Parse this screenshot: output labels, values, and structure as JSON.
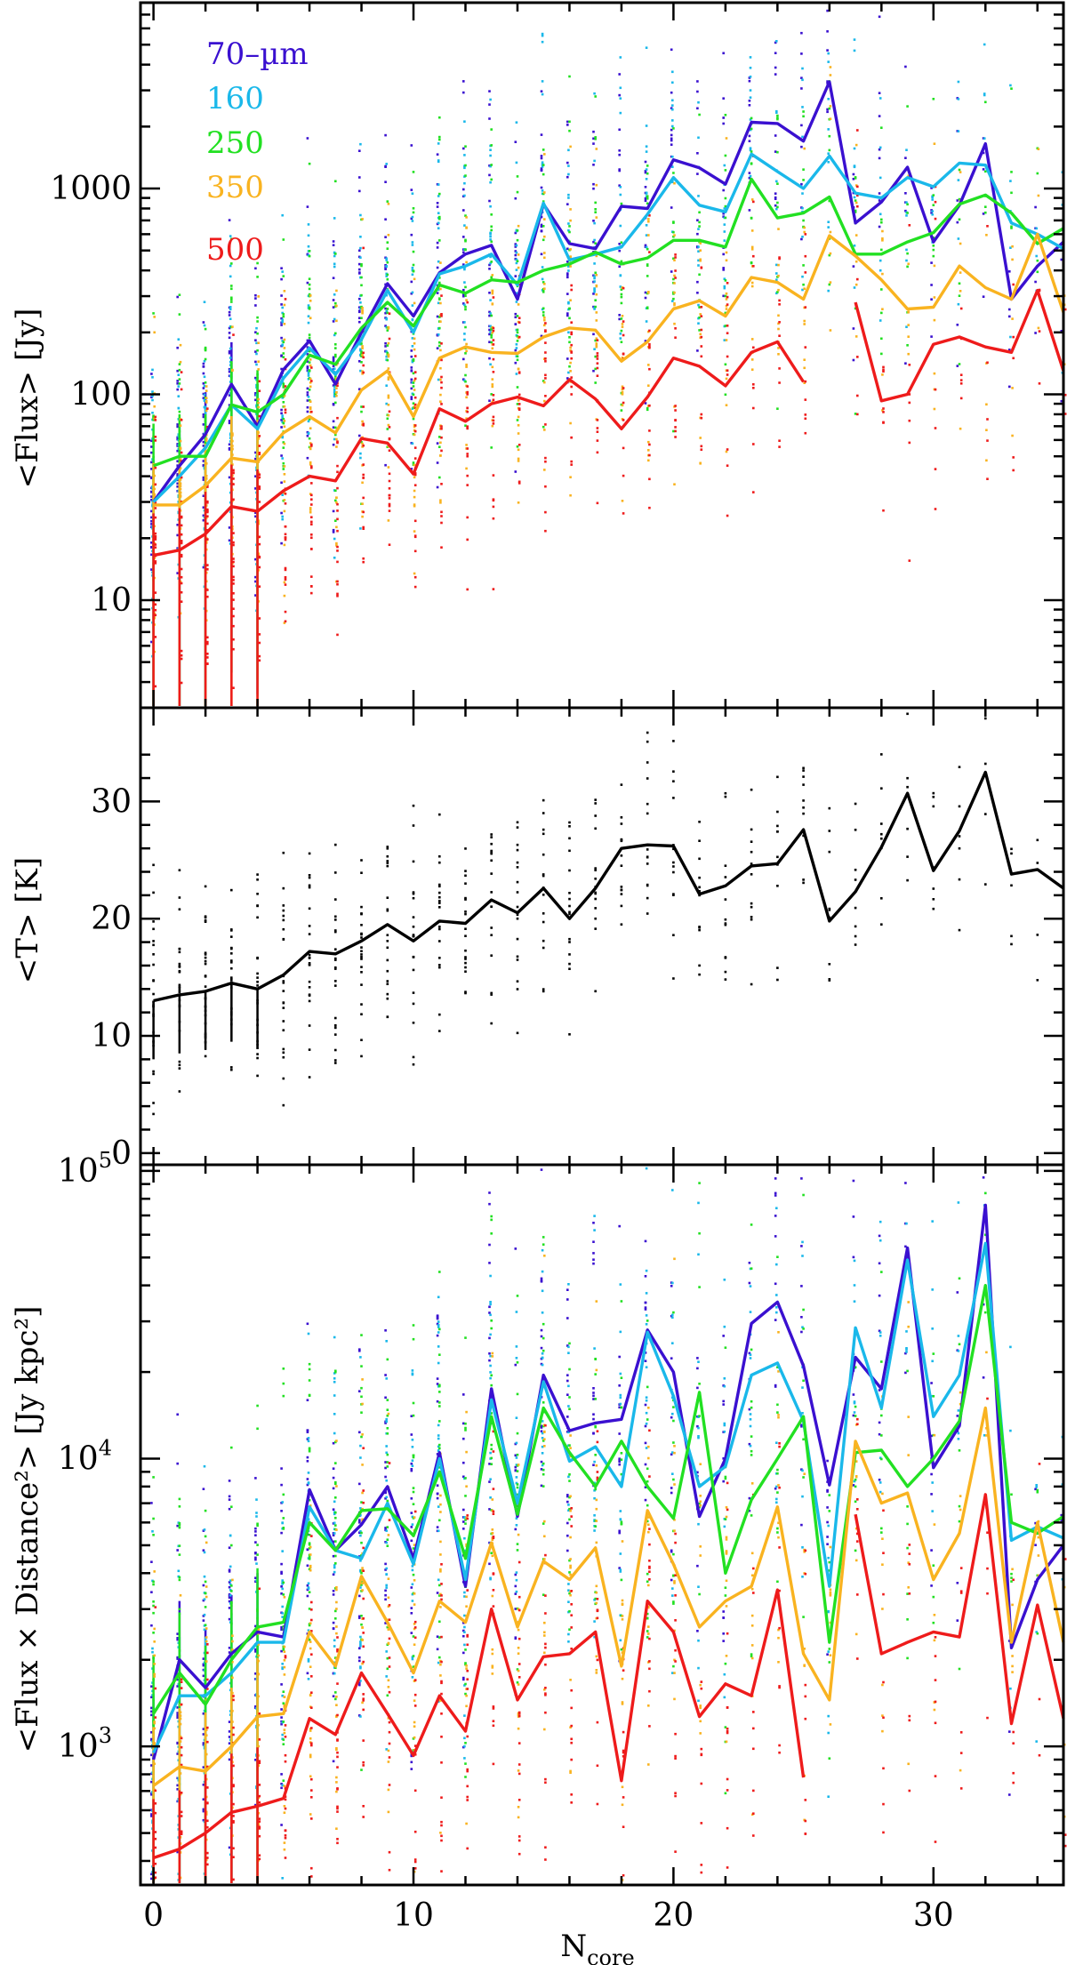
{
  "chart_data": [
    {
      "type": "line",
      "panel": "top",
      "title": "",
      "xlabel": "",
      "ylabel": "<Flux> [Jy]",
      "yscale": "log",
      "xlim": [
        -0.5,
        35
      ],
      "ylim": [
        3,
        8000
      ],
      "xticks": [
        0,
        10,
        20,
        30
      ],
      "yticks": [
        {
          "v": 10,
          "label": "10"
        },
        {
          "v": 100,
          "label": "100"
        },
        {
          "v": 1000,
          "label": "1000"
        }
      ],
      "legend": {
        "position": "top-left",
        "entries": [
          "70–µm",
          "160",
          "250",
          "350",
          "500"
        ]
      },
      "series": [
        {
          "name": "70–µm",
          "color": "#3a10d0",
          "x": [
            0,
            1,
            2,
            3,
            4,
            5,
            6,
            7,
            8,
            9,
            10,
            11,
            12,
            13,
            14,
            15,
            16,
            17,
            18,
            19,
            20,
            21,
            22,
            23,
            24,
            25,
            26,
            27,
            28,
            29,
            30,
            31,
            32,
            33,
            34,
            35
          ],
          "values": [
            30,
            45,
            64,
            112,
            70,
            132,
            182,
            112,
            200,
            345,
            240,
            390,
            480,
            530,
            290,
            840,
            540,
            510,
            820,
            800,
            1380,
            1260,
            1050,
            2100,
            2070,
            1700,
            3300,
            680,
            860,
            1270,
            550,
            830,
            1650,
            290,
            420,
            550
          ]
        },
        {
          "name": "160",
          "color": "#1ab8ea",
          "x": [
            0,
            1,
            2,
            3,
            4,
            5,
            6,
            7,
            8,
            9,
            10,
            11,
            12,
            13,
            14,
            15,
            16,
            17,
            18,
            19,
            20,
            21,
            22,
            23,
            24,
            25,
            26,
            27,
            28,
            29,
            30,
            31,
            32,
            33,
            34,
            35
          ],
          "values": [
            30,
            40,
            55,
            89,
            68,
            120,
            168,
            125,
            185,
            320,
            200,
            385,
            420,
            480,
            340,
            850,
            450,
            480,
            520,
            750,
            1130,
            830,
            770,
            1470,
            1210,
            1000,
            1440,
            950,
            900,
            1130,
            1020,
            1330,
            1300,
            680,
            600,
            510
          ]
        },
        {
          "name": "250",
          "color": "#22e022",
          "x": [
            0,
            1,
            2,
            3,
            4,
            5,
            6,
            7,
            8,
            9,
            10,
            11,
            12,
            13,
            14,
            15,
            16,
            17,
            18,
            19,
            20,
            21,
            22,
            23,
            24,
            25,
            26,
            27,
            28,
            29,
            30,
            31,
            32,
            33,
            34,
            35
          ],
          "values": [
            45,
            50,
            50,
            89,
            82,
            100,
            155,
            140,
            210,
            280,
            215,
            340,
            310,
            360,
            350,
            400,
            430,
            490,
            430,
            460,
            560,
            560,
            520,
            1110,
            720,
            760,
            910,
            480,
            480,
            550,
            610,
            840,
            930,
            760,
            540,
            640
          ]
        },
        {
          "name": "350",
          "color": "#f9b320",
          "x": [
            0,
            1,
            2,
            3,
            4,
            5,
            6,
            7,
            8,
            9,
            10,
            11,
            12,
            13,
            14,
            15,
            16,
            17,
            18,
            19,
            20,
            21,
            22,
            23,
            24,
            25,
            26,
            27,
            28,
            29,
            30,
            31,
            32,
            33,
            34,
            35
          ],
          "values": [
            29,
            29,
            36,
            49,
            47,
            65,
            78,
            65,
            105,
            130,
            78,
            150,
            170,
            160,
            158,
            190,
            210,
            205,
            145,
            180,
            260,
            285,
            240,
            370,
            350,
            290,
            590,
            470,
            360,
            260,
            265,
            420,
            330,
            290,
            600,
            250
          ]
        },
        {
          "name": "500",
          "color": "#ee1b1b",
          "x": [
            0,
            1,
            2,
            3,
            4,
            5,
            6,
            7,
            8,
            9,
            10,
            11,
            12,
            13,
            14,
            15,
            16,
            17,
            18,
            19,
            20,
            21,
            22,
            23,
            24,
            25,
            26,
            27,
            28,
            29,
            30,
            31,
            32,
            33,
            34,
            35
          ],
          "values": [
            16.5,
            17.5,
            21,
            28.5,
            27,
            34,
            40,
            38,
            61,
            58,
            41,
            85,
            74,
            90,
            97,
            88,
            118,
            95,
            68,
            97,
            150,
            137,
            110,
            160,
            180,
            115,
            null,
            280,
            93,
            100,
            175,
            190,
            170,
            160,
            320,
            130
          ]
        }
      ]
    },
    {
      "type": "line",
      "panel": "middle",
      "title": "",
      "xlabel": "",
      "ylabel": "<T> [K]",
      "yscale": "linear",
      "xlim": [
        -0.5,
        35
      ],
      "ylim": [
        -1,
        38
      ],
      "xticks": [
        0,
        10,
        20,
        30
      ],
      "yticks": [
        {
          "v": 0,
          "label": "0"
        },
        {
          "v": 10,
          "label": "10"
        },
        {
          "v": 20,
          "label": "20"
        },
        {
          "v": 30,
          "label": "30"
        }
      ],
      "series": [
        {
          "name": "<T>",
          "color": "#000000",
          "x": [
            0,
            1,
            2,
            3,
            4,
            5,
            6,
            7,
            8,
            9,
            10,
            11,
            12,
            13,
            14,
            15,
            16,
            17,
            18,
            19,
            20,
            21,
            22,
            23,
            24,
            25,
            26,
            27,
            28,
            29,
            30,
            31,
            32,
            33,
            34,
            35
          ],
          "values": [
            13,
            13.5,
            13.8,
            14.5,
            14,
            15.2,
            17.2,
            17,
            18.1,
            19.5,
            18.1,
            19.8,
            19.6,
            21.6,
            20.5,
            22.6,
            20,
            22.6,
            26,
            26.3,
            26.2,
            22.1,
            22.8,
            24.5,
            24.7,
            27.6,
            19.8,
            22.3,
            26.1,
            30.7,
            24.1,
            27.5,
            32.5,
            23.8,
            24.2,
            22.6
          ]
        }
      ]
    },
    {
      "type": "line",
      "panel": "bottom",
      "title": "",
      "xlabel": "N_core",
      "ylabel": "<Flux × Distance²> [Jy kpc²]",
      "yscale": "log",
      "xlim": [
        -0.5,
        35
      ],
      "ylim": [
        330,
        105000
      ],
      "xticks": [
        0,
        10,
        20,
        30
      ],
      "yticks": [
        {
          "v": 1000,
          "label": "10",
          "exp": "3"
        },
        {
          "v": 10000,
          "label": "10",
          "exp": "4"
        },
        {
          "v": 100000,
          "label": "10",
          "exp": "5"
        }
      ],
      "series": [
        {
          "name": "70–µm",
          "color": "#3a10d0",
          "x": [
            0,
            1,
            2,
            3,
            4,
            5,
            6,
            7,
            8,
            9,
            10,
            11,
            12,
            13,
            14,
            15,
            16,
            17,
            18,
            19,
            20,
            21,
            22,
            23,
            24,
            25,
            26,
            27,
            28,
            29,
            30,
            31,
            32,
            33,
            34,
            35
          ],
          "values": [
            900,
            2000,
            1600,
            2100,
            2500,
            2400,
            7800,
            4800,
            5900,
            8000,
            4500,
            10500,
            3600,
            17500,
            6300,
            19500,
            12500,
            13300,
            13700,
            28000,
            20000,
            6300,
            10000,
            29500,
            35000,
            21000,
            8100,
            22500,
            17500,
            54000,
            9300,
            13000,
            76000,
            2200,
            3800,
            5000
          ]
        },
        {
          "name": "160",
          "color": "#1ab8ea",
          "x": [
            0,
            1,
            2,
            3,
            4,
            5,
            6,
            7,
            8,
            9,
            10,
            11,
            12,
            13,
            14,
            15,
            16,
            17,
            18,
            19,
            20,
            21,
            22,
            23,
            24,
            25,
            26,
            27,
            28,
            29,
            30,
            31,
            32,
            33,
            34,
            35
          ],
          "values": [
            950,
            1500,
            1500,
            1800,
            2300,
            2300,
            6800,
            4800,
            4500,
            7000,
            4300,
            10000,
            3800,
            16000,
            7000,
            18500,
            9800,
            11000,
            8000,
            27500,
            16500,
            8000,
            9400,
            19500,
            21500,
            13500,
            3600,
            28500,
            15000,
            49000,
            14000,
            19500,
            56000,
            5200,
            5800,
            5300
          ]
        },
        {
          "name": "250",
          "color": "#22e022",
          "x": [
            0,
            1,
            2,
            3,
            4,
            5,
            6,
            7,
            8,
            9,
            10,
            11,
            12,
            13,
            14,
            15,
            16,
            17,
            18,
            19,
            20,
            21,
            22,
            23,
            24,
            25,
            26,
            27,
            28,
            29,
            30,
            31,
            32,
            33,
            34,
            35
          ],
          "values": [
            1300,
            1800,
            1400,
            2000,
            2600,
            2700,
            6000,
            4800,
            6600,
            6700,
            5400,
            9000,
            4500,
            14000,
            6400,
            15000,
            10500,
            8000,
            11500,
            8000,
            6200,
            17000,
            4000,
            7200,
            10000,
            14000,
            2300,
            10500,
            10700,
            8000,
            10000,
            13500,
            40000,
            6000,
            5500,
            6300
          ]
        },
        {
          "name": "350",
          "color": "#f9b320",
          "x": [
            0,
            1,
            2,
            3,
            4,
            5,
            6,
            7,
            8,
            9,
            10,
            11,
            12,
            13,
            14,
            15,
            16,
            17,
            18,
            19,
            20,
            21,
            22,
            23,
            24,
            25,
            26,
            27,
            28,
            29,
            30,
            31,
            32,
            33,
            34,
            35
          ],
          "values": [
            730,
            850,
            820,
            1000,
            1270,
            1300,
            2500,
            1900,
            3900,
            2700,
            1800,
            3200,
            2700,
            5100,
            2600,
            4400,
            3800,
            4900,
            1900,
            6600,
            4300,
            2600,
            3200,
            3600,
            6800,
            2100,
            1450,
            11500,
            7000,
            7600,
            3800,
            5500,
            15000,
            2300,
            6000,
            2300
          ]
        },
        {
          "name": "500",
          "color": "#ee1b1b",
          "x": [
            0,
            1,
            2,
            3,
            4,
            5,
            6,
            7,
            8,
            9,
            10,
            11,
            12,
            13,
            14,
            15,
            16,
            17,
            18,
            19,
            20,
            21,
            22,
            23,
            24,
            25,
            26,
            27,
            28,
            29,
            30,
            31,
            32,
            33,
            34,
            35
          ],
          "values": [
            410,
            440,
            500,
            590,
            620,
            660,
            1250,
            1100,
            1800,
            1300,
            930,
            1500,
            1130,
            3000,
            1450,
            2050,
            2100,
            2500,
            760,
            3200,
            2500,
            1270,
            1650,
            1500,
            3500,
            780,
            null,
            6400,
            2100,
            2300,
            2500,
            2400,
            7500,
            1200,
            3100,
            1250
          ]
        }
      ]
    }
  ]
}
